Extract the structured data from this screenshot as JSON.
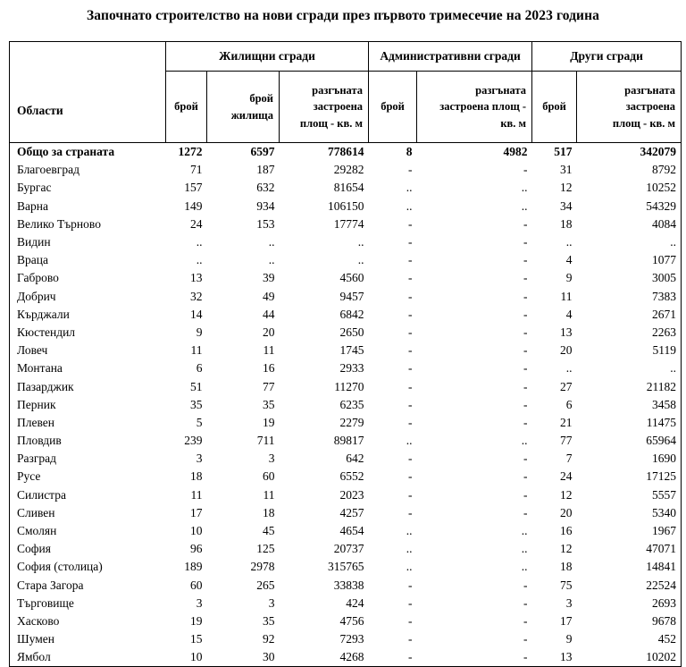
{
  "title": "Започнато строителство на нови сгради през първото тримесечие на 2023 година",
  "colors": {
    "text": "#000000",
    "border": "#000000",
    "background": "#ffffff"
  },
  "table": {
    "corner_header": "Области",
    "groups": [
      {
        "label": "Жилищни сгради",
        "columns": [
          "брой",
          "брой\nжилища",
          "разгъната\nзастроена\nплощ - кв. м"
        ]
      },
      {
        "label": "Административни сгради",
        "columns": [
          "брой",
          "разгъната\nзастроена площ -\nкв. м"
        ]
      },
      {
        "label": "Други сгради",
        "columns": [
          "брой",
          "разгъната\nзастроена\nплощ - кв. м"
        ]
      }
    ],
    "rows": [
      {
        "region": "Общо за страната",
        "bold": true,
        "values": [
          "1272",
          "6597",
          "778614",
          "8",
          "4982",
          "517",
          "342079"
        ]
      },
      {
        "region": "Благоевград",
        "bold": false,
        "values": [
          "71",
          "187",
          "29282",
          "-",
          "-",
          "31",
          "8792"
        ]
      },
      {
        "region": "Бургас",
        "bold": false,
        "values": [
          "157",
          "632",
          "81654",
          "..",
          "..",
          "12",
          "10252"
        ]
      },
      {
        "region": "Варна",
        "bold": false,
        "values": [
          "149",
          "934",
          "106150",
          "..",
          "..",
          "34",
          "54329"
        ]
      },
      {
        "region": "Велико Търново",
        "bold": false,
        "values": [
          "24",
          "153",
          "17774",
          "-",
          "-",
          "18",
          "4084"
        ]
      },
      {
        "region": "Видин",
        "bold": false,
        "values": [
          "..",
          "..",
          "..",
          "-",
          "-",
          "..",
          ".."
        ]
      },
      {
        "region": "Враца",
        "bold": false,
        "values": [
          "..",
          "..",
          "..",
          "-",
          "-",
          "4",
          "1077"
        ]
      },
      {
        "region": "Габрово",
        "bold": false,
        "values": [
          "13",
          "39",
          "4560",
          "-",
          "-",
          "9",
          "3005"
        ]
      },
      {
        "region": "Добрич",
        "bold": false,
        "values": [
          "32",
          "49",
          "9457",
          "-",
          "-",
          "11",
          "7383"
        ]
      },
      {
        "region": "Кърджали",
        "bold": false,
        "values": [
          "14",
          "44",
          "6842",
          "-",
          "-",
          "4",
          "2671"
        ]
      },
      {
        "region": "Кюстендил",
        "bold": false,
        "values": [
          "9",
          "20",
          "2650",
          "-",
          "-",
          "13",
          "2263"
        ]
      },
      {
        "region": "Ловеч",
        "bold": false,
        "values": [
          "11",
          "11",
          "1745",
          "-",
          "-",
          "20",
          "5119"
        ]
      },
      {
        "region": "Монтана",
        "bold": false,
        "values": [
          "6",
          "16",
          "2933",
          "-",
          "-",
          "..",
          ".."
        ]
      },
      {
        "region": "Пазарджик",
        "bold": false,
        "values": [
          "51",
          "77",
          "11270",
          "-",
          "-",
          "27",
          "21182"
        ]
      },
      {
        "region": "Перник",
        "bold": false,
        "values": [
          "35",
          "35",
          "6235",
          "-",
          "-",
          "6",
          "3458"
        ]
      },
      {
        "region": "Плевен",
        "bold": false,
        "values": [
          "5",
          "19",
          "2279",
          "-",
          "-",
          "21",
          "11475"
        ]
      },
      {
        "region": "Пловдив",
        "bold": false,
        "values": [
          "239",
          "711",
          "89817",
          "..",
          "..",
          "77",
          "65964"
        ]
      },
      {
        "region": "Разград",
        "bold": false,
        "values": [
          "3",
          "3",
          "642",
          "-",
          "-",
          "7",
          "1690"
        ]
      },
      {
        "region": "Русе",
        "bold": false,
        "values": [
          "18",
          "60",
          "6552",
          "-",
          "-",
          "24",
          "17125"
        ]
      },
      {
        "region": "Силистра",
        "bold": false,
        "values": [
          "11",
          "11",
          "2023",
          "-",
          "-",
          "12",
          "5557"
        ]
      },
      {
        "region": "Сливен",
        "bold": false,
        "values": [
          "17",
          "18",
          "4257",
          "-",
          "-",
          "20",
          "5340"
        ]
      },
      {
        "region": "Смолян",
        "bold": false,
        "values": [
          "10",
          "45",
          "4654",
          "..",
          "..",
          "16",
          "1967"
        ]
      },
      {
        "region": "София",
        "bold": false,
        "values": [
          "96",
          "125",
          "20737",
          "..",
          "..",
          "12",
          "47071"
        ]
      },
      {
        "region": "София (столица)",
        "bold": false,
        "values": [
          "189",
          "2978",
          "315765",
          "..",
          "..",
          "18",
          "14841"
        ]
      },
      {
        "region": "Стара Загора",
        "bold": false,
        "values": [
          "60",
          "265",
          "33838",
          "-",
          "-",
          "75",
          "22524"
        ]
      },
      {
        "region": "Търговище",
        "bold": false,
        "values": [
          "3",
          "3",
          "424",
          "-",
          "-",
          "3",
          "2693"
        ]
      },
      {
        "region": "Хасково",
        "bold": false,
        "values": [
          "19",
          "35",
          "4756",
          "-",
          "-",
          "17",
          "9678"
        ]
      },
      {
        "region": "Шумен",
        "bold": false,
        "values": [
          "15",
          "92",
          "7293",
          "-",
          "-",
          "9",
          "452"
        ]
      },
      {
        "region": "Ямбол",
        "bold": false,
        "values": [
          "10",
          "30",
          "4268",
          "-",
          "-",
          "13",
          "10202"
        ]
      }
    ]
  }
}
